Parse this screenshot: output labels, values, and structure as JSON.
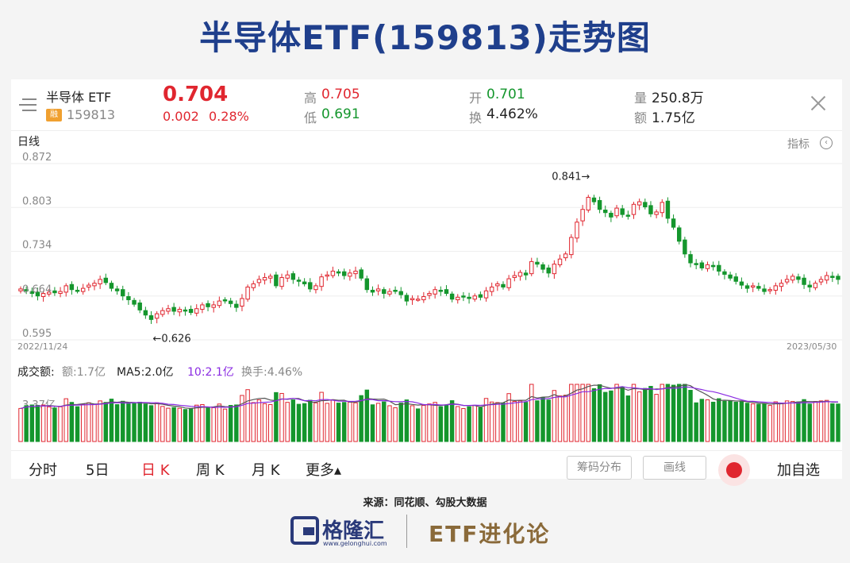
{
  "page_title": "半导体ETF(159813)走势图",
  "header": {
    "name": "半导体 ETF",
    "badge": "融",
    "code": "159813",
    "price": "0.704",
    "change": "0.002",
    "change_pct": "0.28%",
    "high_label": "高",
    "high": "0.705",
    "low_label": "低",
    "low": "0.691",
    "open_label": "开",
    "open": "0.701",
    "turnover_label": "换",
    "turnover": "4.462%",
    "volume_label": "量",
    "volume": "250.8万",
    "amount_label": "额",
    "amount": "1.75亿"
  },
  "chart_header": {
    "period": "日线",
    "indicator": "指标"
  },
  "chart_data": {
    "type": "candlestick",
    "y_ticks": [
      "0.872",
      "0.803",
      "0.734",
      "0.664",
      "0.595"
    ],
    "ylim": [
      0.595,
      0.872
    ],
    "x_start": "2022/11/24",
    "x_end": "2023/05/30",
    "max_annotation": "0.841→",
    "min_annotation": "←0.626",
    "closes": [
      0.675,
      0.672,
      0.668,
      0.664,
      0.668,
      0.67,
      0.669,
      0.671,
      0.68,
      0.674,
      0.672,
      0.676,
      0.681,
      0.684,
      0.69,
      0.685,
      0.676,
      0.672,
      0.664,
      0.658,
      0.651,
      0.642,
      0.634,
      0.627,
      0.636,
      0.641,
      0.644,
      0.64,
      0.643,
      0.641,
      0.638,
      0.644,
      0.65,
      0.647,
      0.65,
      0.656,
      0.657,
      0.652,
      0.646,
      0.66,
      0.678,
      0.683,
      0.69,
      0.693,
      0.695,
      0.68,
      0.693,
      0.697,
      0.69,
      0.687,
      0.683,
      0.675,
      0.68,
      0.694,
      0.697,
      0.703,
      0.7,
      0.696,
      0.7,
      0.703,
      0.692,
      0.674,
      0.67,
      0.675,
      0.668,
      0.671,
      0.672,
      0.666,
      0.656,
      0.66,
      0.659,
      0.663,
      0.668,
      0.674,
      0.672,
      0.668,
      0.659,
      0.662,
      0.663,
      0.66,
      0.664,
      0.662,
      0.672,
      0.678,
      0.683,
      0.678,
      0.691,
      0.696,
      0.701,
      0.697,
      0.718,
      0.714,
      0.706,
      0.7,
      0.714,
      0.722,
      0.73,
      0.756,
      0.78,
      0.8,
      0.819,
      0.812,
      0.8,
      0.795,
      0.788,
      0.802,
      0.792,
      0.79,
      0.808,
      0.812,
      0.804,
      0.793,
      0.796,
      0.811,
      0.786,
      0.772,
      0.75,
      0.73,
      0.716,
      0.714,
      0.708,
      0.713,
      0.71,
      0.703,
      0.698,
      0.692,
      0.687,
      0.681,
      0.676,
      0.68,
      0.676,
      0.671,
      0.674,
      0.68,
      0.684,
      0.69,
      0.695,
      0.69,
      0.682,
      0.678,
      0.684,
      0.69,
      0.696,
      0.693,
      0.69
    ],
    "volume_label": "成交额:",
    "amount_text": "额:1.7亿",
    "ma5_text": "MA5:2.0亿",
    "ma10_text": "10:2.1亿",
    "turnover_text": "换手:4.46%",
    "volume_max_label": "3.37亿"
  },
  "tabs": [
    "分时",
    "5日",
    "日 K",
    "周 K",
    "月 K",
    "更多▴"
  ],
  "active_tab": "日 K",
  "buttons": {
    "chips": "筹码分布",
    "draw": "画线",
    "add": "加自选"
  },
  "source": "来源：同花顺、勾股大数据",
  "footer": {
    "logo_cn": "格隆汇",
    "logo_url": "www.gelonghui.com",
    "brand": "ETF进化论"
  },
  "colors": {
    "up": "#e0262f",
    "down": "#14962d",
    "title": "#1f3f8c",
    "brand": "#8a6a3a"
  }
}
